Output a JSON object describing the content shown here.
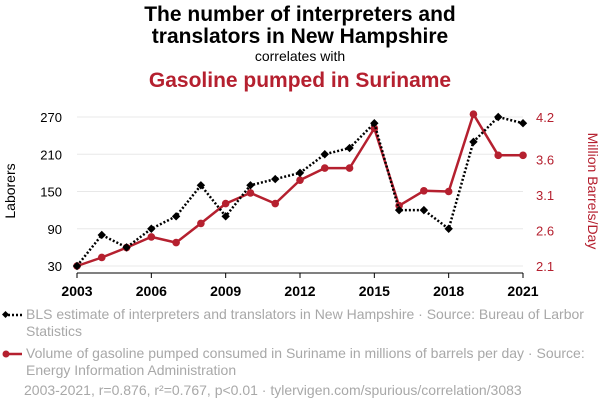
{
  "header": {
    "title_line1": "The number of interpreters and",
    "title_line2": "translators in New Hampshire",
    "correlates": "correlates with",
    "title2": "Gasoline pumped in Suriname"
  },
  "legend": {
    "series1": "BLS estimate of interpreters and translators in New Hampshire · Source: Bureau of Larbor Statistics",
    "series2": "Volume of gasoline pumped consumed in Suriname in millions of barrels per day · Source: Energy Information Administration"
  },
  "footer": "2003-2021, r=0.876, r²=0.767, p<0.01 · tylervigen.com/spurious/correlation/3083",
  "colors": {
    "series1": "#000000",
    "series2": "#b5202f",
    "grid": "#e8e8e8",
    "legend_text": "#a8a8a8"
  },
  "chart_data": {
    "type": "line",
    "x": [
      2003,
      2004,
      2005,
      2006,
      2007,
      2008,
      2009,
      2010,
      2011,
      2012,
      2013,
      2014,
      2015,
      2016,
      2017,
      2018,
      2019,
      2020,
      2021
    ],
    "x_ticks": [
      "2003",
      "2006",
      "2009",
      "2012",
      "2015",
      "2018",
      "2021"
    ],
    "left_axis": {
      "label": "Laborers",
      "ticks": [
        "30",
        "90",
        "150",
        "210",
        "270"
      ],
      "range": [
        30,
        270
      ]
    },
    "right_axis": {
      "label": "Million Barrels/Day",
      "ticks": [
        "2.1",
        "2.6",
        "3.1",
        "3.6",
        "4.2"
      ],
      "range": [
        2.1,
        4.2
      ]
    },
    "grid": true,
    "series": [
      {
        "name": "BLS estimate of interpreters and translators in New Hampshire",
        "axis": "left",
        "style": "dotted",
        "marker": "diamond",
        "values": [
          30,
          80,
          60,
          90,
          110,
          160,
          110,
          160,
          170,
          180,
          210,
          220,
          260,
          120,
          120,
          90,
          230,
          270,
          260
        ]
      },
      {
        "name": "Volume of gasoline pumped consumed in Suriname in millions of barrels per day",
        "axis": "right",
        "style": "solid",
        "marker": "circle",
        "values": [
          2.1,
          2.22,
          2.36,
          2.51,
          2.43,
          2.7,
          2.98,
          3.13,
          2.98,
          3.31,
          3.48,
          3.48,
          4.04,
          2.95,
          3.16,
          3.15,
          4.24,
          3.66,
          3.66
        ]
      }
    ]
  }
}
